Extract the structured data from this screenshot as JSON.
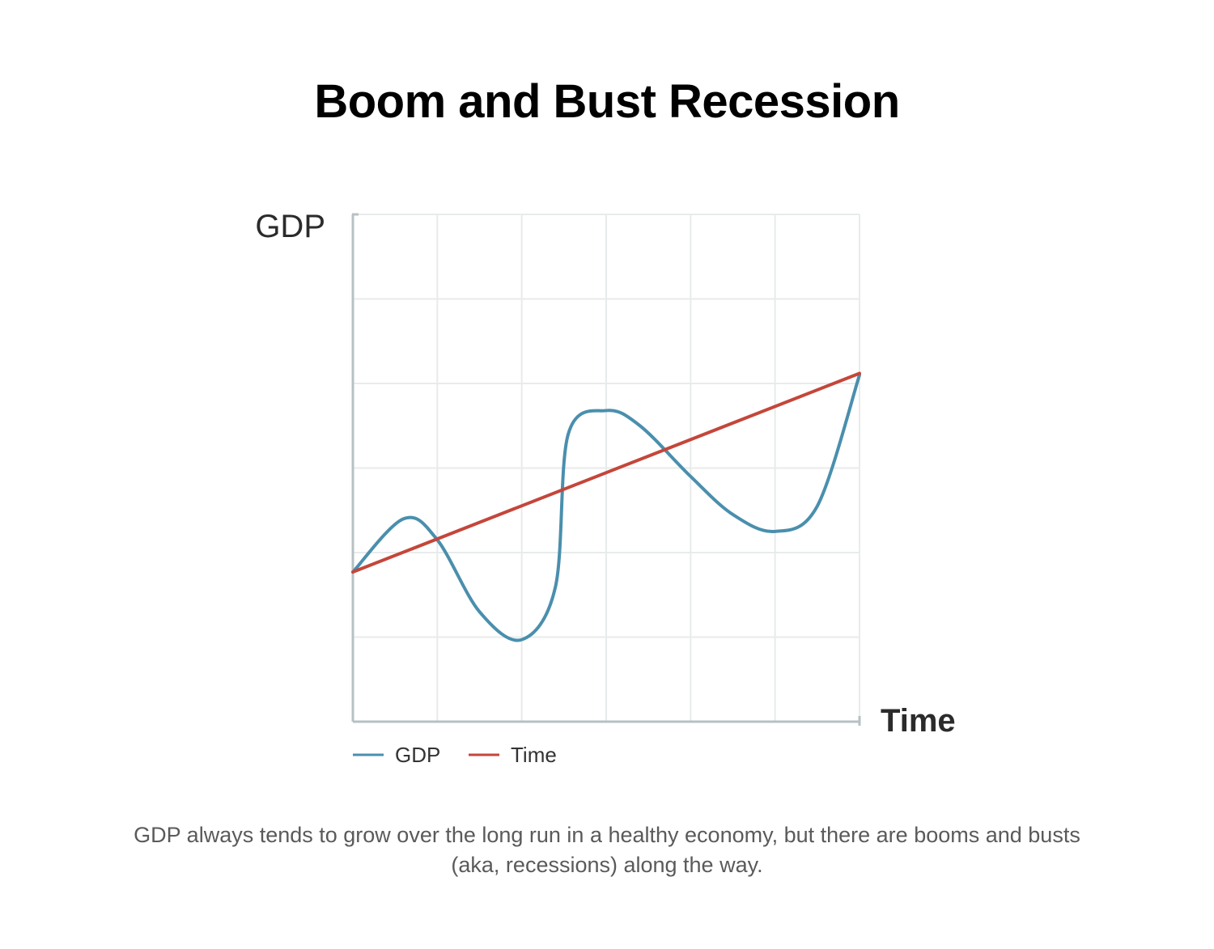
{
  "title": "Boom and Bust Recession",
  "caption": "GDP always tends to grow over the long run in a healthy economy, but there are booms and busts (aka, recessions) along the way.",
  "colors": {
    "gdp": "#4a8fad",
    "time": "#c4463a",
    "grid": "#e8ebeb",
    "axis": "#b7c1c4"
  },
  "chart_data": {
    "type": "line",
    "ylabel": "GDP",
    "xlabel": "Time",
    "xlim": [
      0,
      6
    ],
    "ylim": [
      0,
      6
    ],
    "grid": true,
    "legend_position": "bottom-left",
    "series": [
      {
        "name": "GDP",
        "x": [
          0,
          0.6,
          1,
          1.5,
          2,
          2.4,
          2.55,
          3,
          3.4,
          4,
          4.5,
          5,
          5.5,
          6
        ],
        "y": [
          1.77,
          2.4,
          2.15,
          1.3,
          0.97,
          1.6,
          3.4,
          3.68,
          3.5,
          2.9,
          2.45,
          2.25,
          2.55,
          4.1
        ]
      },
      {
        "name": "Time",
        "x": [
          0,
          6
        ],
        "y": [
          1.77,
          4.12
        ]
      }
    ]
  }
}
